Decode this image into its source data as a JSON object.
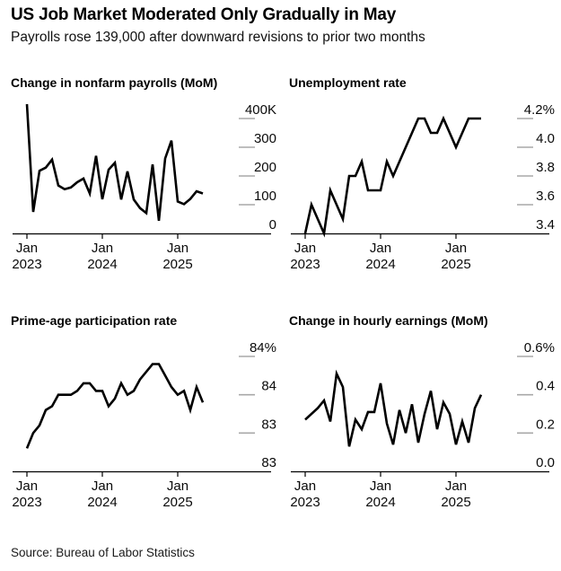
{
  "header": {
    "title": "US Job Market Moderated Only Gradually in May",
    "subtitle": "Payrolls rose 139,000 after downward revisions to prior two months"
  },
  "footer": {
    "source": "Source: Bureau of Labor Statistics"
  },
  "colors": {
    "series_line": "#000000",
    "axis_line": "#000000",
    "tick_dash": "#a8a8a8",
    "label_text": "#0a0a0a",
    "background": "#ffffff"
  },
  "chart_data": [
    {
      "type": "line",
      "title": "Change in nonfarm payrolls (MoM)",
      "ylim": [
        0,
        400
      ],
      "y_ticks": [
        {
          "value": 400,
          "label": "400K"
        },
        {
          "value": 300,
          "label": "300"
        },
        {
          "value": 200,
          "label": "200"
        },
        {
          "value": 100,
          "label": "100"
        },
        {
          "value": 0,
          "label": "0"
        }
      ],
      "x_ticks": [
        {
          "month_index": 0,
          "line1": "Jan",
          "line2": "2023"
        },
        {
          "month_index": 12,
          "line1": "Jan",
          "line2": "2024"
        },
        {
          "month_index": 24,
          "line1": "Jan",
          "line2": "2025"
        }
      ],
      "x_start": "Jan 2023",
      "values": [
        450,
        75,
        218,
        229,
        257,
        167,
        154,
        160,
        178,
        191,
        139,
        270,
        119,
        222,
        246,
        118,
        216,
        118,
        88,
        71,
        240,
        44,
        261,
        323,
        111,
        102,
        120,
        147,
        139
      ]
    },
    {
      "type": "line",
      "title": "Unemployment rate",
      "ylim": [
        3.4,
        4.2
      ],
      "y_ticks": [
        {
          "value": 4.2,
          "label": "4.2%"
        },
        {
          "value": 4.0,
          "label": "4.0"
        },
        {
          "value": 3.8,
          "label": "3.8"
        },
        {
          "value": 3.6,
          "label": "3.6"
        },
        {
          "value": 3.4,
          "label": "3.4"
        }
      ],
      "x_ticks": [
        {
          "month_index": 0,
          "line1": "Jan",
          "line2": "2023"
        },
        {
          "month_index": 12,
          "line1": "Jan",
          "line2": "2024"
        },
        {
          "month_index": 24,
          "line1": "Jan",
          "line2": "2025"
        }
      ],
      "x_start": "Jan 2023",
      "values": [
        3.4,
        3.6,
        3.5,
        3.4,
        3.7,
        3.6,
        3.5,
        3.8,
        3.8,
        3.9,
        3.7,
        3.7,
        3.7,
        3.9,
        3.8,
        3.9,
        4.0,
        4.1,
        4.2,
        4.2,
        4.1,
        4.1,
        4.2,
        4.1,
        4.0,
        4.1,
        4.2,
        4.2,
        4.2
      ]
    },
    {
      "type": "line",
      "title": "Prime-age participation rate",
      "ylim": [
        82.5,
        84.0
      ],
      "y_ticks": [
        {
          "value": 84.0,
          "label": "84%"
        },
        {
          "value": 83.5,
          "label": "84"
        },
        {
          "value": 83.0,
          "label": "83"
        },
        {
          "value": 82.5,
          "label": "83"
        }
      ],
      "x_ticks": [
        {
          "month_index": 0,
          "line1": "Jan",
          "line2": "2023"
        },
        {
          "month_index": 12,
          "line1": "Jan",
          "line2": "2024"
        },
        {
          "month_index": 24,
          "line1": "Jan",
          "line2": "2025"
        }
      ],
      "x_start": "Jan 2023",
      "values": [
        82.8,
        83.0,
        83.1,
        83.3,
        83.35,
        83.5,
        83.5,
        83.5,
        83.55,
        83.65,
        83.65,
        83.55,
        83.55,
        83.35,
        83.45,
        83.65,
        83.5,
        83.55,
        83.7,
        83.8,
        83.9,
        83.9,
        83.75,
        83.6,
        83.5,
        83.55,
        83.3,
        83.6,
        83.4
      ]
    },
    {
      "type": "line",
      "title": "Change in hourly earnings (MoM)",
      "ylim": [
        0.0,
        0.6
      ],
      "y_ticks": [
        {
          "value": 0.6,
          "label": "0.6%"
        },
        {
          "value": 0.4,
          "label": "0.4"
        },
        {
          "value": 0.2,
          "label": "0.2"
        },
        {
          "value": 0.0,
          "label": "0.0"
        }
      ],
      "x_ticks": [
        {
          "month_index": 0,
          "line1": "Jan",
          "line2": "2023"
        },
        {
          "month_index": 12,
          "line1": "Jan",
          "line2": "2024"
        },
        {
          "month_index": 24,
          "line1": "Jan",
          "line2": "2025"
        }
      ],
      "x_start": "Jan 2023",
      "values": [
        0.27,
        0.3,
        0.33,
        0.37,
        0.26,
        0.51,
        0.44,
        0.13,
        0.27,
        0.22,
        0.31,
        0.31,
        0.46,
        0.25,
        0.14,
        0.32,
        0.2,
        0.35,
        0.15,
        0.3,
        0.42,
        0.22,
        0.36,
        0.3,
        0.14,
        0.26,
        0.15,
        0.33,
        0.4
      ]
    }
  ]
}
